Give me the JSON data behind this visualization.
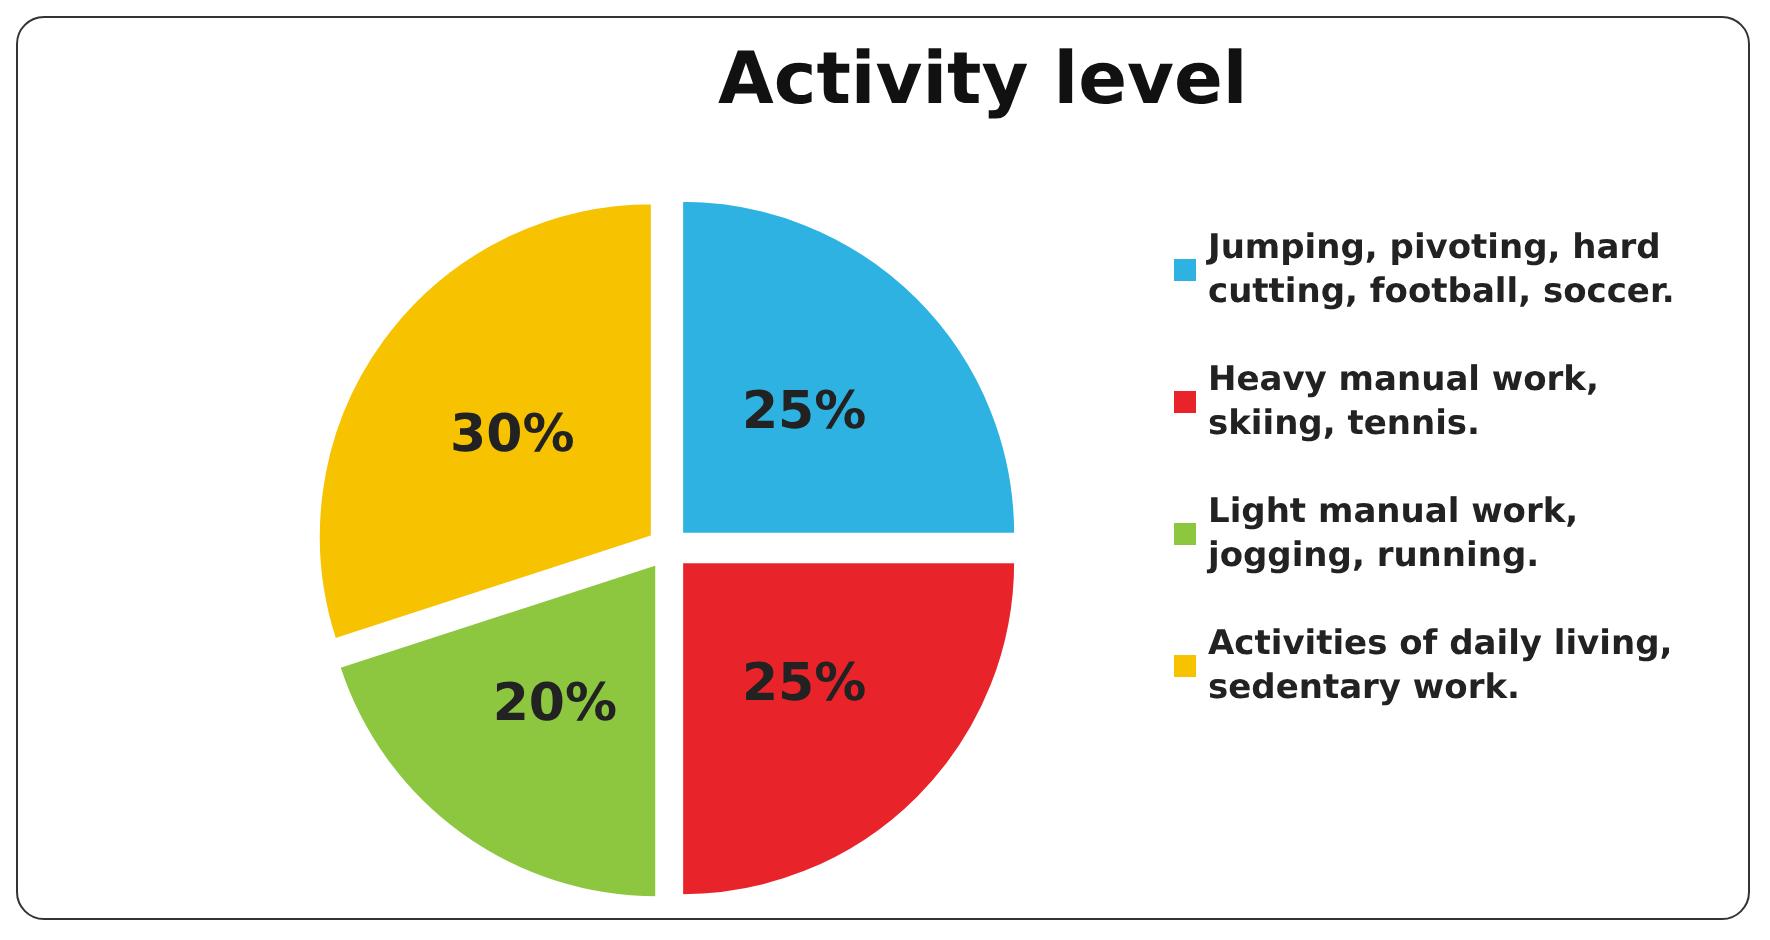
{
  "chart_data": {
    "type": "pie",
    "title": "Activity level",
    "categories": [
      "Jumping, pivoting, hard cutting, football, soccer.",
      "Heavy manual work, skiing, tennis.",
      "Light manual work, jogging, running.",
      "Activities of daily living, sedentary work."
    ],
    "values": [
      25,
      25,
      20,
      30
    ],
    "colors": [
      "#2eb2e2",
      "#e8232a",
      "#8dc63f",
      "#f7c200"
    ],
    "value_labels": [
      "25%",
      "25%",
      "20%",
      "30%"
    ],
    "legend": "right"
  }
}
